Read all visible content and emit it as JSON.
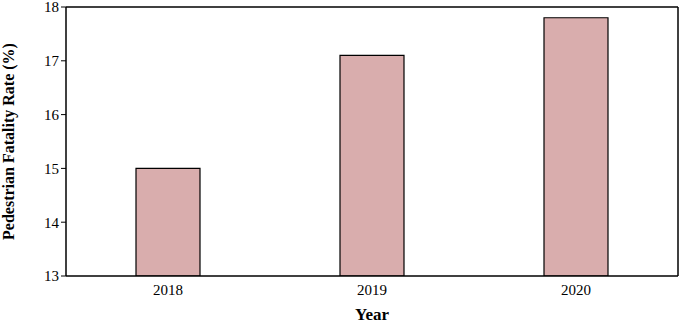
{
  "chart_data": {
    "type": "bar",
    "categories": [
      "2018",
      "2019",
      "2020"
    ],
    "values": [
      15.0,
      17.1,
      17.8
    ],
    "color": "#d9adad",
    "x_label": "Year",
    "y_label": "Pedestrian Fatality Rate (%)",
    "ylim": [
      13,
      18
    ],
    "yticks": [
      13,
      14,
      15,
      16,
      17,
      18
    ],
    "grid": false
  }
}
